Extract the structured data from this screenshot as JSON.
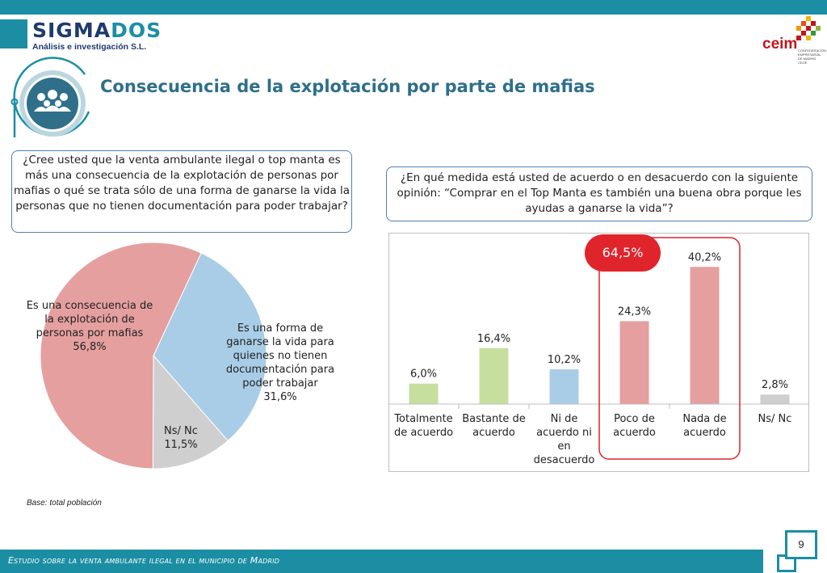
{
  "brand": {
    "name_part1": "SIGMA",
    "name_part2": "DOS",
    "subtitle": "Análisis e investigación S.L.",
    "partner": "ceim",
    "partner_sub": "CONFEDERACIÓN EMPRESARIAL DE MADRID CEOE",
    "colors": {
      "teal": "#1b8ea4",
      "navy": "#1f3a6e",
      "red": "#c0161c"
    }
  },
  "title": "Consecuencia de la explotación por parte de mafias",
  "question_left": "¿Cree usted que la venta ambulante ilegal o top manta es más una consecuencia de la explotación de personas por mafias o qué se trata sólo de una forma de ganarse la vida la personas que no tienen documentación para poder trabajar?",
  "question_right": "¿En qué medida está usted de acuerdo o en desacuerdo con la siguiente opinión: “Comprar en el Top Manta es también una buena obra porque les ayudas a ganarse la vida”?",
  "highlight": "64,5%",
  "base_note": "Base: total población",
  "footer": "Estudio sobre la venta ambulante ilegal en el municipio de Madrid",
  "page_number": "9",
  "chart_data": [
    {
      "type": "pie",
      "slices": [
        {
          "label": "Es una consecuencia de la explotación de personas por mafias",
          "value": 56.8,
          "value_label": "56,8%",
          "color": "#e59f9f"
        },
        {
          "label": "Es una forma de ganarse la vida para quienes no tienen documentación para poder trabajar",
          "value": 31.6,
          "value_label": "31,6%",
          "color": "#a9cde6"
        },
        {
          "label": "Ns/ Nc",
          "value": 11.5,
          "value_label": "11,5%",
          "color": "#cfcfcf"
        }
      ]
    },
    {
      "type": "bar",
      "categories": [
        "Totalmente de acuerdo",
        "Bastante de acuerdo",
        "Ni de acuerdo ni en desacuerdo",
        "Poco de acuerdo",
        "Nada de acuerdo",
        "Ns/ Nc"
      ],
      "values": [
        6.0,
        16.4,
        10.2,
        24.3,
        40.2,
        2.8
      ],
      "value_labels": [
        "6,0%",
        "16,4%",
        "10,2%",
        "24,3%",
        "40,2%",
        "2,8%"
      ],
      "colors": [
        "#c6df9f",
        "#c6df9f",
        "#a9cde6",
        "#e59f9f",
        "#e59f9f",
        "#cfcfcf"
      ],
      "ylim": [
        0,
        45
      ]
    }
  ]
}
